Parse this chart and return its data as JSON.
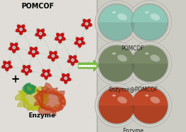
{
  "bg_color": "#e8e8e0",
  "left_bg": "#e0ddd8",
  "pomcof_label": "POMCOF",
  "enzyme_label": "Enzyme",
  "plus_sign": "+",
  "arrow_color": "#7cc142",
  "arrow_dot_color": "#ffffff",
  "right_panel": {
    "row_labels": [
      "POMCOF",
      "Enzyme@POMCOF",
      "Enzyme"
    ],
    "label_fontsize": 5.5,
    "row_colors_top": [
      "#90c8b8",
      "#7a8a68",
      "#c04828"
    ],
    "row_colors_mid": [
      "#78b8a8",
      "#686a50",
      "#b03818"
    ],
    "plate_bg": "#c8c8c0",
    "plate_border": "#a0a098",
    "well_outer_color": "#c0c0b8",
    "well_rim_color": "#d0d0c8",
    "label_color": "#202020"
  },
  "pomcof_cluster": {
    "petal_color": "#cc1010",
    "petal_dark": "#991010",
    "center_color": "#cccccc",
    "stick_color": "#aaaaaa",
    "stick_light": "#c8e8d0",
    "n_petals": 5,
    "n_clusters": 12
  },
  "enzyme": {
    "color_left": "#b8b820",
    "color_right": "#c03810",
    "color_accent": "#208040",
    "ribbon_color": "#a0a010"
  },
  "fig_width": 2.66,
  "fig_height": 1.89,
  "dpi": 100
}
